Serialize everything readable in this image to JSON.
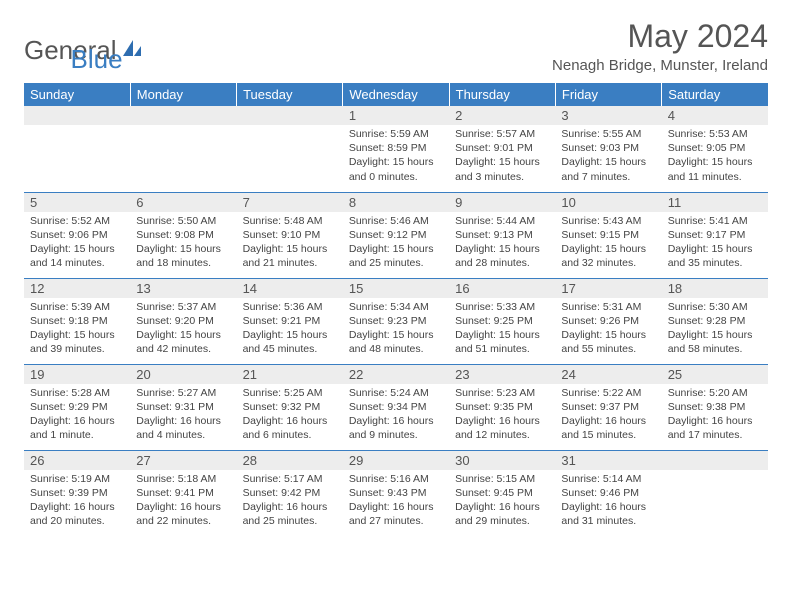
{
  "brand": {
    "part1": "General",
    "part2": "Blue"
  },
  "title": "May 2024",
  "location": "Nenagh Bridge, Munster, Ireland",
  "weekdays": [
    "Sunday",
    "Monday",
    "Tuesday",
    "Wednesday",
    "Thursday",
    "Friday",
    "Saturday"
  ],
  "colors": {
    "header_bg": "#3a7ec2",
    "daynum_bg": "#ededed",
    "border": "#3a7ec2"
  },
  "weeks": [
    [
      null,
      null,
      null,
      {
        "n": "1",
        "sr": "5:59 AM",
        "ss": "8:59 PM",
        "dl": "15 hours and 0 minutes."
      },
      {
        "n": "2",
        "sr": "5:57 AM",
        "ss": "9:01 PM",
        "dl": "15 hours and 3 minutes."
      },
      {
        "n": "3",
        "sr": "5:55 AM",
        "ss": "9:03 PM",
        "dl": "15 hours and 7 minutes."
      },
      {
        "n": "4",
        "sr": "5:53 AM",
        "ss": "9:05 PM",
        "dl": "15 hours and 11 minutes."
      }
    ],
    [
      {
        "n": "5",
        "sr": "5:52 AM",
        "ss": "9:06 PM",
        "dl": "15 hours and 14 minutes."
      },
      {
        "n": "6",
        "sr": "5:50 AM",
        "ss": "9:08 PM",
        "dl": "15 hours and 18 minutes."
      },
      {
        "n": "7",
        "sr": "5:48 AM",
        "ss": "9:10 PM",
        "dl": "15 hours and 21 minutes."
      },
      {
        "n": "8",
        "sr": "5:46 AM",
        "ss": "9:12 PM",
        "dl": "15 hours and 25 minutes."
      },
      {
        "n": "9",
        "sr": "5:44 AM",
        "ss": "9:13 PM",
        "dl": "15 hours and 28 minutes."
      },
      {
        "n": "10",
        "sr": "5:43 AM",
        "ss": "9:15 PM",
        "dl": "15 hours and 32 minutes."
      },
      {
        "n": "11",
        "sr": "5:41 AM",
        "ss": "9:17 PM",
        "dl": "15 hours and 35 minutes."
      }
    ],
    [
      {
        "n": "12",
        "sr": "5:39 AM",
        "ss": "9:18 PM",
        "dl": "15 hours and 39 minutes."
      },
      {
        "n": "13",
        "sr": "5:37 AM",
        "ss": "9:20 PM",
        "dl": "15 hours and 42 minutes."
      },
      {
        "n": "14",
        "sr": "5:36 AM",
        "ss": "9:21 PM",
        "dl": "15 hours and 45 minutes."
      },
      {
        "n": "15",
        "sr": "5:34 AM",
        "ss": "9:23 PM",
        "dl": "15 hours and 48 minutes."
      },
      {
        "n": "16",
        "sr": "5:33 AM",
        "ss": "9:25 PM",
        "dl": "15 hours and 51 minutes."
      },
      {
        "n": "17",
        "sr": "5:31 AM",
        "ss": "9:26 PM",
        "dl": "15 hours and 55 minutes."
      },
      {
        "n": "18",
        "sr": "5:30 AM",
        "ss": "9:28 PM",
        "dl": "15 hours and 58 minutes."
      }
    ],
    [
      {
        "n": "19",
        "sr": "5:28 AM",
        "ss": "9:29 PM",
        "dl": "16 hours and 1 minute."
      },
      {
        "n": "20",
        "sr": "5:27 AM",
        "ss": "9:31 PM",
        "dl": "16 hours and 4 minutes."
      },
      {
        "n": "21",
        "sr": "5:25 AM",
        "ss": "9:32 PM",
        "dl": "16 hours and 6 minutes."
      },
      {
        "n": "22",
        "sr": "5:24 AM",
        "ss": "9:34 PM",
        "dl": "16 hours and 9 minutes."
      },
      {
        "n": "23",
        "sr": "5:23 AM",
        "ss": "9:35 PM",
        "dl": "16 hours and 12 minutes."
      },
      {
        "n": "24",
        "sr": "5:22 AM",
        "ss": "9:37 PM",
        "dl": "16 hours and 15 minutes."
      },
      {
        "n": "25",
        "sr": "5:20 AM",
        "ss": "9:38 PM",
        "dl": "16 hours and 17 minutes."
      }
    ],
    [
      {
        "n": "26",
        "sr": "5:19 AM",
        "ss": "9:39 PM",
        "dl": "16 hours and 20 minutes."
      },
      {
        "n": "27",
        "sr": "5:18 AM",
        "ss": "9:41 PM",
        "dl": "16 hours and 22 minutes."
      },
      {
        "n": "28",
        "sr": "5:17 AM",
        "ss": "9:42 PM",
        "dl": "16 hours and 25 minutes."
      },
      {
        "n": "29",
        "sr": "5:16 AM",
        "ss": "9:43 PM",
        "dl": "16 hours and 27 minutes."
      },
      {
        "n": "30",
        "sr": "5:15 AM",
        "ss": "9:45 PM",
        "dl": "16 hours and 29 minutes."
      },
      {
        "n": "31",
        "sr": "5:14 AM",
        "ss": "9:46 PM",
        "dl": "16 hours and 31 minutes."
      },
      null
    ]
  ],
  "labels": {
    "sunrise": "Sunrise:",
    "sunset": "Sunset:",
    "daylight": "Daylight:"
  }
}
